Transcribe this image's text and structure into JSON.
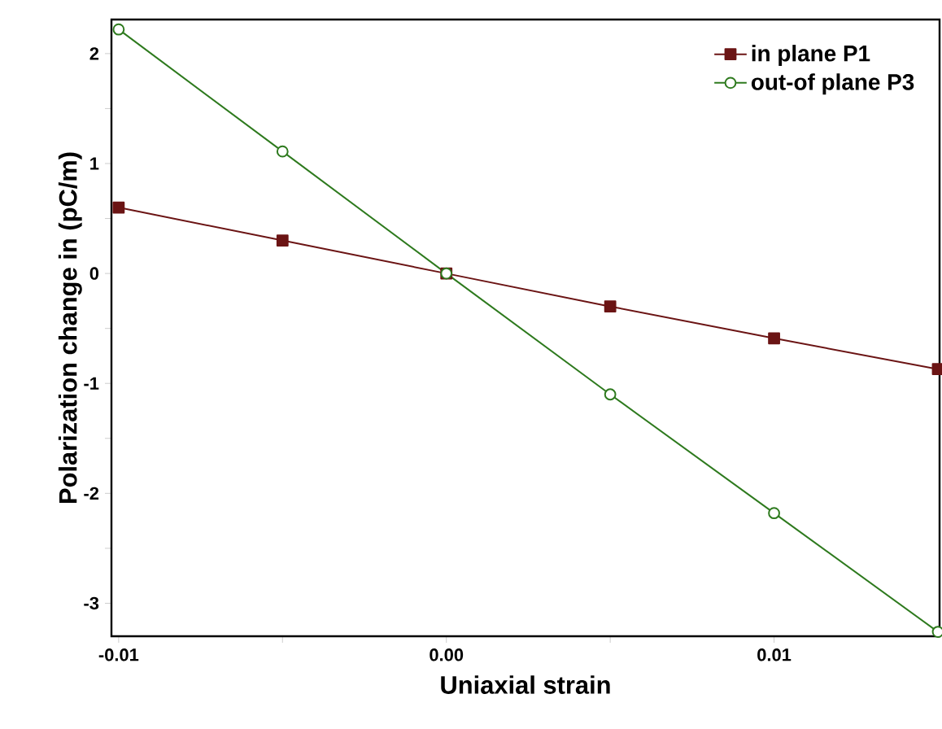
{
  "chart_data": {
    "type": "line",
    "xlabel": "Uniaxial strain",
    "ylabel": "Polarization change in (pC/m)",
    "x": [
      -0.01,
      -0.005,
      0,
      0.005,
      0.01,
      0.015
    ],
    "series": [
      {
        "name": "in plane P1",
        "color": "#6b1414",
        "marker": "square",
        "values": [
          0.6,
          0.3,
          0,
          -0.3,
          -0.59,
          -0.87
        ]
      },
      {
        "name": "out-of plane P3",
        "color": "#2e7a1e",
        "marker": "circle",
        "values": [
          2.22,
          1.11,
          0,
          -1.1,
          -2.18,
          -3.26
        ]
      }
    ],
    "xlim": [
      -0.01022,
      0.01505
    ],
    "ylim": [
      -3.3,
      2.31
    ],
    "xticks": [
      {
        "value": -0.01,
        "label": "-0.01"
      },
      {
        "value": -0.005,
        "label": null
      },
      {
        "value": 0,
        "label": "0.00"
      },
      {
        "value": 0.005,
        "label": null
      },
      {
        "value": 0.01,
        "label": "0.01"
      }
    ],
    "yticks": [
      {
        "value": -3,
        "label": "-3"
      },
      {
        "value": -2.5,
        "label": null
      },
      {
        "value": -2,
        "label": "-2"
      },
      {
        "value": -1.5,
        "label": null
      },
      {
        "value": -1,
        "label": "-1"
      },
      {
        "value": -0.5,
        "label": null
      },
      {
        "value": 0,
        "label": "0"
      },
      {
        "value": 0.5,
        "label": null
      },
      {
        "value": 1,
        "label": "1"
      },
      {
        "value": 1.5,
        "label": null
      },
      {
        "value": 2,
        "label": "2"
      }
    ],
    "legend": "top right",
    "line_style": "solid"
  }
}
